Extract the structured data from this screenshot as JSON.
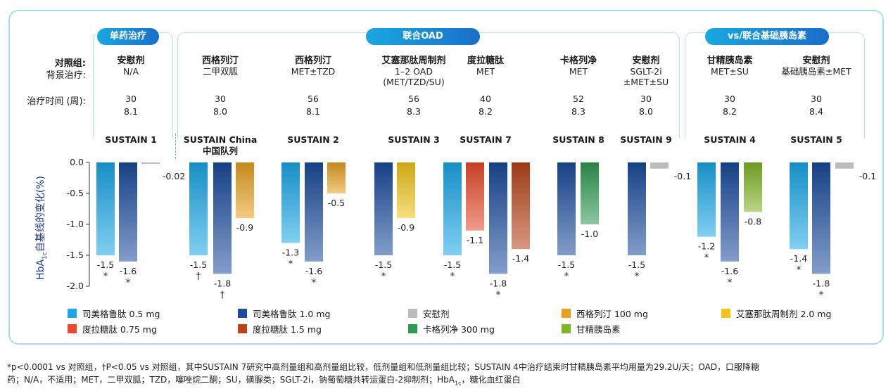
{
  "groups": [
    {
      "label": "单药治疗"
    },
    {
      "label": "联合OAD"
    },
    {
      "label": "vs/联合基础胰岛素"
    }
  ],
  "row_labels": {
    "control": "对照组:",
    "background": "背景治疗:",
    "duration": "治疗时间 (周):"
  },
  "studies": [
    {
      "control": "安慰剂",
      "background": "N/A",
      "background2": "",
      "background3": "",
      "weeks": "30",
      "baseline": "8.1",
      "trial": "SUSTAIN 1",
      "trial2": ""
    },
    {
      "control": "西格列汀",
      "background": "二甲双胍",
      "background2": "",
      "background3": "",
      "weeks": "30",
      "baseline": "8.0",
      "trial": "SUSTAIN  China",
      "trial2": "中国队列"
    },
    {
      "control": "西格列汀",
      "background": "MET±TZD",
      "background2": "",
      "background3": "",
      "weeks": "56",
      "baseline": "8.1",
      "trial": "SUSTAIN 2",
      "trial2": ""
    },
    {
      "control": "艾塞那肽周制剂",
      "background": "1–2 OAD",
      "background2": "(MET/TZD/SU)",
      "background3": "",
      "weeks": "56",
      "baseline": "8.3",
      "trial": "SUSTAIN 3",
      "trial2": ""
    },
    {
      "control": "度拉糖肽",
      "background": "MET",
      "background2": "",
      "background3": "",
      "weeks": "40",
      "baseline": "8.2",
      "trial": "SUSTAIN 7",
      "trial2": ""
    },
    {
      "control": "卡格列净",
      "background": "MET",
      "background2": "",
      "background3": "",
      "weeks": "52",
      "baseline": "8.3",
      "trial": "SUSTAIN 8",
      "trial2": ""
    },
    {
      "control": "安慰剂",
      "background": "SGLT-2i",
      "background2": "±MET±SU",
      "background3": "",
      "weeks": "30",
      "baseline": "8.0",
      "trial": "SUSTAIN 9",
      "trial2": ""
    },
    {
      "control": "甘精胰岛素",
      "background": "MET±SU",
      "background2": "",
      "background3": "",
      "weeks": "30",
      "baseline": "8.2",
      "trial": "SUSTAIN 4",
      "trial2": ""
    },
    {
      "control": "安慰剂",
      "background": "基础胰岛素±MET",
      "background2": "",
      "background3": "",
      "weeks": "30",
      "baseline": "8.4",
      "trial": "SUSTAIN 5",
      "trial2": ""
    }
  ],
  "chart_data": {
    "type": "bar",
    "ylabel": "HbA1c自基线的变化(%)",
    "ylabel_main": "HbA",
    "ylabel_sub": "1c",
    "ylabel_rest": "自基线的变化(%)",
    "ylim": [
      -2.0,
      0.0
    ],
    "yticks": [
      "0.0",
      "-0.5",
      "-1.0",
      "-1.5",
      "-2.0"
    ],
    "categories": [
      "SUSTAIN 1",
      "SUSTAIN China 中国队列",
      "SUSTAIN 2",
      "SUSTAIN 3",
      "SUSTAIN 7",
      "SUSTAIN 8",
      "SUSTAIN 9",
      "SUSTAIN 4",
      "SUSTAIN 5"
    ],
    "bars": [
      {
        "study": 0,
        "series": "sema05",
        "value": -1.5,
        "label": "-1.5",
        "mark": "*"
      },
      {
        "study": 0,
        "series": "sema10",
        "value": -1.6,
        "label": "-1.6",
        "mark": "*"
      },
      {
        "study": 0,
        "series": "placebo",
        "value": -0.02,
        "label": "-0.02",
        "mark": ""
      },
      {
        "study": 1,
        "series": "sema05",
        "value": -1.5,
        "label": "-1.5",
        "mark": "†"
      },
      {
        "study": 1,
        "series": "sema10",
        "value": -1.8,
        "label": "-1.8",
        "mark": "†"
      },
      {
        "study": 1,
        "series": "sita",
        "value": -0.9,
        "label": "-0.9",
        "mark": ""
      },
      {
        "study": 2,
        "series": "sema05",
        "value": -1.3,
        "label": "-1.3",
        "mark": "*"
      },
      {
        "study": 2,
        "series": "sema10",
        "value": -1.6,
        "label": "-1.6",
        "mark": "*"
      },
      {
        "study": 2,
        "series": "sita",
        "value": -0.5,
        "label": "-0.5",
        "mark": ""
      },
      {
        "study": 3,
        "series": "sema10",
        "value": -1.5,
        "label": "-1.5",
        "mark": "*"
      },
      {
        "study": 3,
        "series": "exen",
        "value": -0.9,
        "label": "-0.9",
        "mark": ""
      },
      {
        "study": 4,
        "series": "sema05",
        "value": -1.5,
        "label": "-1.5",
        "mark": "*"
      },
      {
        "study": 4,
        "series": "dula075",
        "value": -1.1,
        "label": "-1.1",
        "mark": ""
      },
      {
        "study": 4,
        "series": "sema10",
        "value": -1.8,
        "label": "-1.8",
        "mark": "*"
      },
      {
        "study": 4,
        "series": "dula15",
        "value": -1.4,
        "label": "-1.4",
        "mark": ""
      },
      {
        "study": 5,
        "series": "sema10",
        "value": -1.5,
        "label": "-1.5",
        "mark": "*"
      },
      {
        "study": 5,
        "series": "cana",
        "value": -1.0,
        "label": "-1.0",
        "mark": ""
      },
      {
        "study": 6,
        "series": "sema10",
        "value": -1.5,
        "label": "-1.5",
        "mark": "*"
      },
      {
        "study": 6,
        "series": "placebo",
        "value": -0.1,
        "label": "-0.1",
        "mark": ""
      },
      {
        "study": 7,
        "series": "sema05",
        "value": -1.2,
        "label": "-1.2",
        "mark": "*"
      },
      {
        "study": 7,
        "series": "sema10",
        "value": -1.6,
        "label": "-1.6",
        "mark": "*"
      },
      {
        "study": 7,
        "series": "glar",
        "value": -0.8,
        "label": "-0.8",
        "mark": ""
      },
      {
        "study": 8,
        "series": "sema05",
        "value": -1.4,
        "label": "-1.4",
        "mark": "*"
      },
      {
        "study": 8,
        "series": "sema10",
        "value": -1.8,
        "label": "-1.8",
        "mark": "*"
      },
      {
        "study": 8,
        "series": "placebo",
        "value": -0.1,
        "label": "-0.1",
        "mark": ""
      }
    ],
    "series": [
      {
        "id": "sema05",
        "name": "司美格鲁肽 0.5 mg",
        "color": "#1aa7e8"
      },
      {
        "id": "sema10",
        "name": "司美格鲁肽 1.0 mg",
        "color": "#1b4d9c"
      },
      {
        "id": "placebo",
        "name": "安慰剂",
        "color": "#bcbcbc"
      },
      {
        "id": "sita",
        "name": "西格列汀 100 mg",
        "color": "#e8a020"
      },
      {
        "id": "exen",
        "name": "艾塞那肽周制剂 2.0 mg",
        "color": "#f0c419"
      },
      {
        "id": "dula075",
        "name": "度拉糖肽 0.75 mg",
        "color": "#e84a2a"
      },
      {
        "id": "dula15",
        "name": "度拉糖肽 1.5 mg",
        "color": "#b8441a"
      },
      {
        "id": "cana",
        "name": "卡格列净 300 mg",
        "color": "#2e9a52"
      },
      {
        "id": "glar",
        "name": "甘精胰岛素",
        "color": "#7fb526"
      }
    ]
  },
  "footnote": {
    "line1": "*p<0.0001 vs 对照组，†P<0.05 vs 对照组，其中SUSTAIN 7研究中高剂量组和高剂量组比较，低剂量组和低剂量组比较；SUSTAIN 4中治疗结束时甘精胰岛素平均用量为29.2U/天；OAD，口服降糖",
    "line2a": "药；N/A，不适用；MET，二甲双胍；TZD，噻唑烷二酮；SU，磺脲类；SGLT-2i，钠葡萄糖共转运蛋白-2抑制剂；HbA",
    "line2sub": "1c",
    "line2b": "，糖化血红蛋白"
  }
}
